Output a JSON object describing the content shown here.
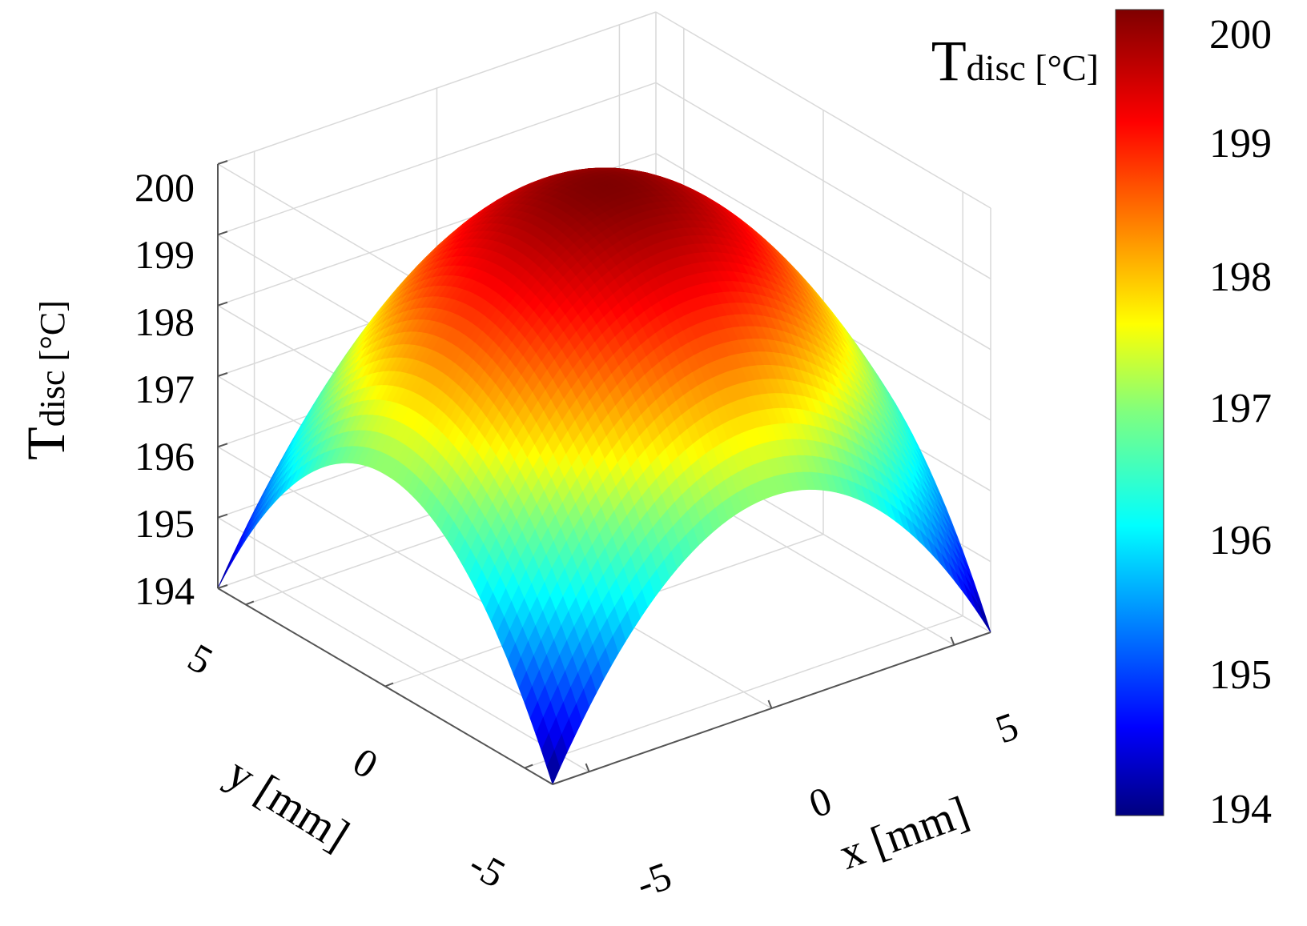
{
  "chart_data": {
    "type": "surface3d",
    "title": "",
    "xlabel": "x [mm]",
    "ylabel": "y [mm]",
    "zlabel": {
      "main": "T",
      "sub": "disc",
      "unit": " [°C]"
    },
    "x_range": [
      -6,
      6
    ],
    "y_range": [
      -6,
      6
    ],
    "z_range": [
      194,
      200
    ],
    "x_ticks": [
      -5,
      0,
      5
    ],
    "y_ticks": [
      -5,
      0,
      5
    ],
    "z_ticks": [
      194,
      195,
      196,
      197,
      198,
      199,
      200
    ],
    "x_tick_labels": [
      "-5",
      "0",
      "5"
    ],
    "y_tick_labels": [
      "5",
      "0",
      "-5"
    ],
    "z_tick_labels": [
      "194",
      "195",
      "196",
      "197",
      "198",
      "199",
      "200"
    ],
    "surface": {
      "function": "T(x,y) = 200 - 6/72 * (x^2 + y^2) clipped to square domain",
      "peak": {
        "x": 0,
        "y": 0,
        "T": 200
      },
      "corner_value": 194,
      "edge_midpoint_value": 197
    },
    "colormap": "jet",
    "colorbar": {
      "label": {
        "main": "T",
        "sub": "disc",
        "unit": " [°C]"
      },
      "range": [
        194,
        200
      ],
      "ticks": [
        "194",
        "195",
        "196",
        "197",
        "198",
        "199",
        "200"
      ]
    },
    "grid": true
  }
}
